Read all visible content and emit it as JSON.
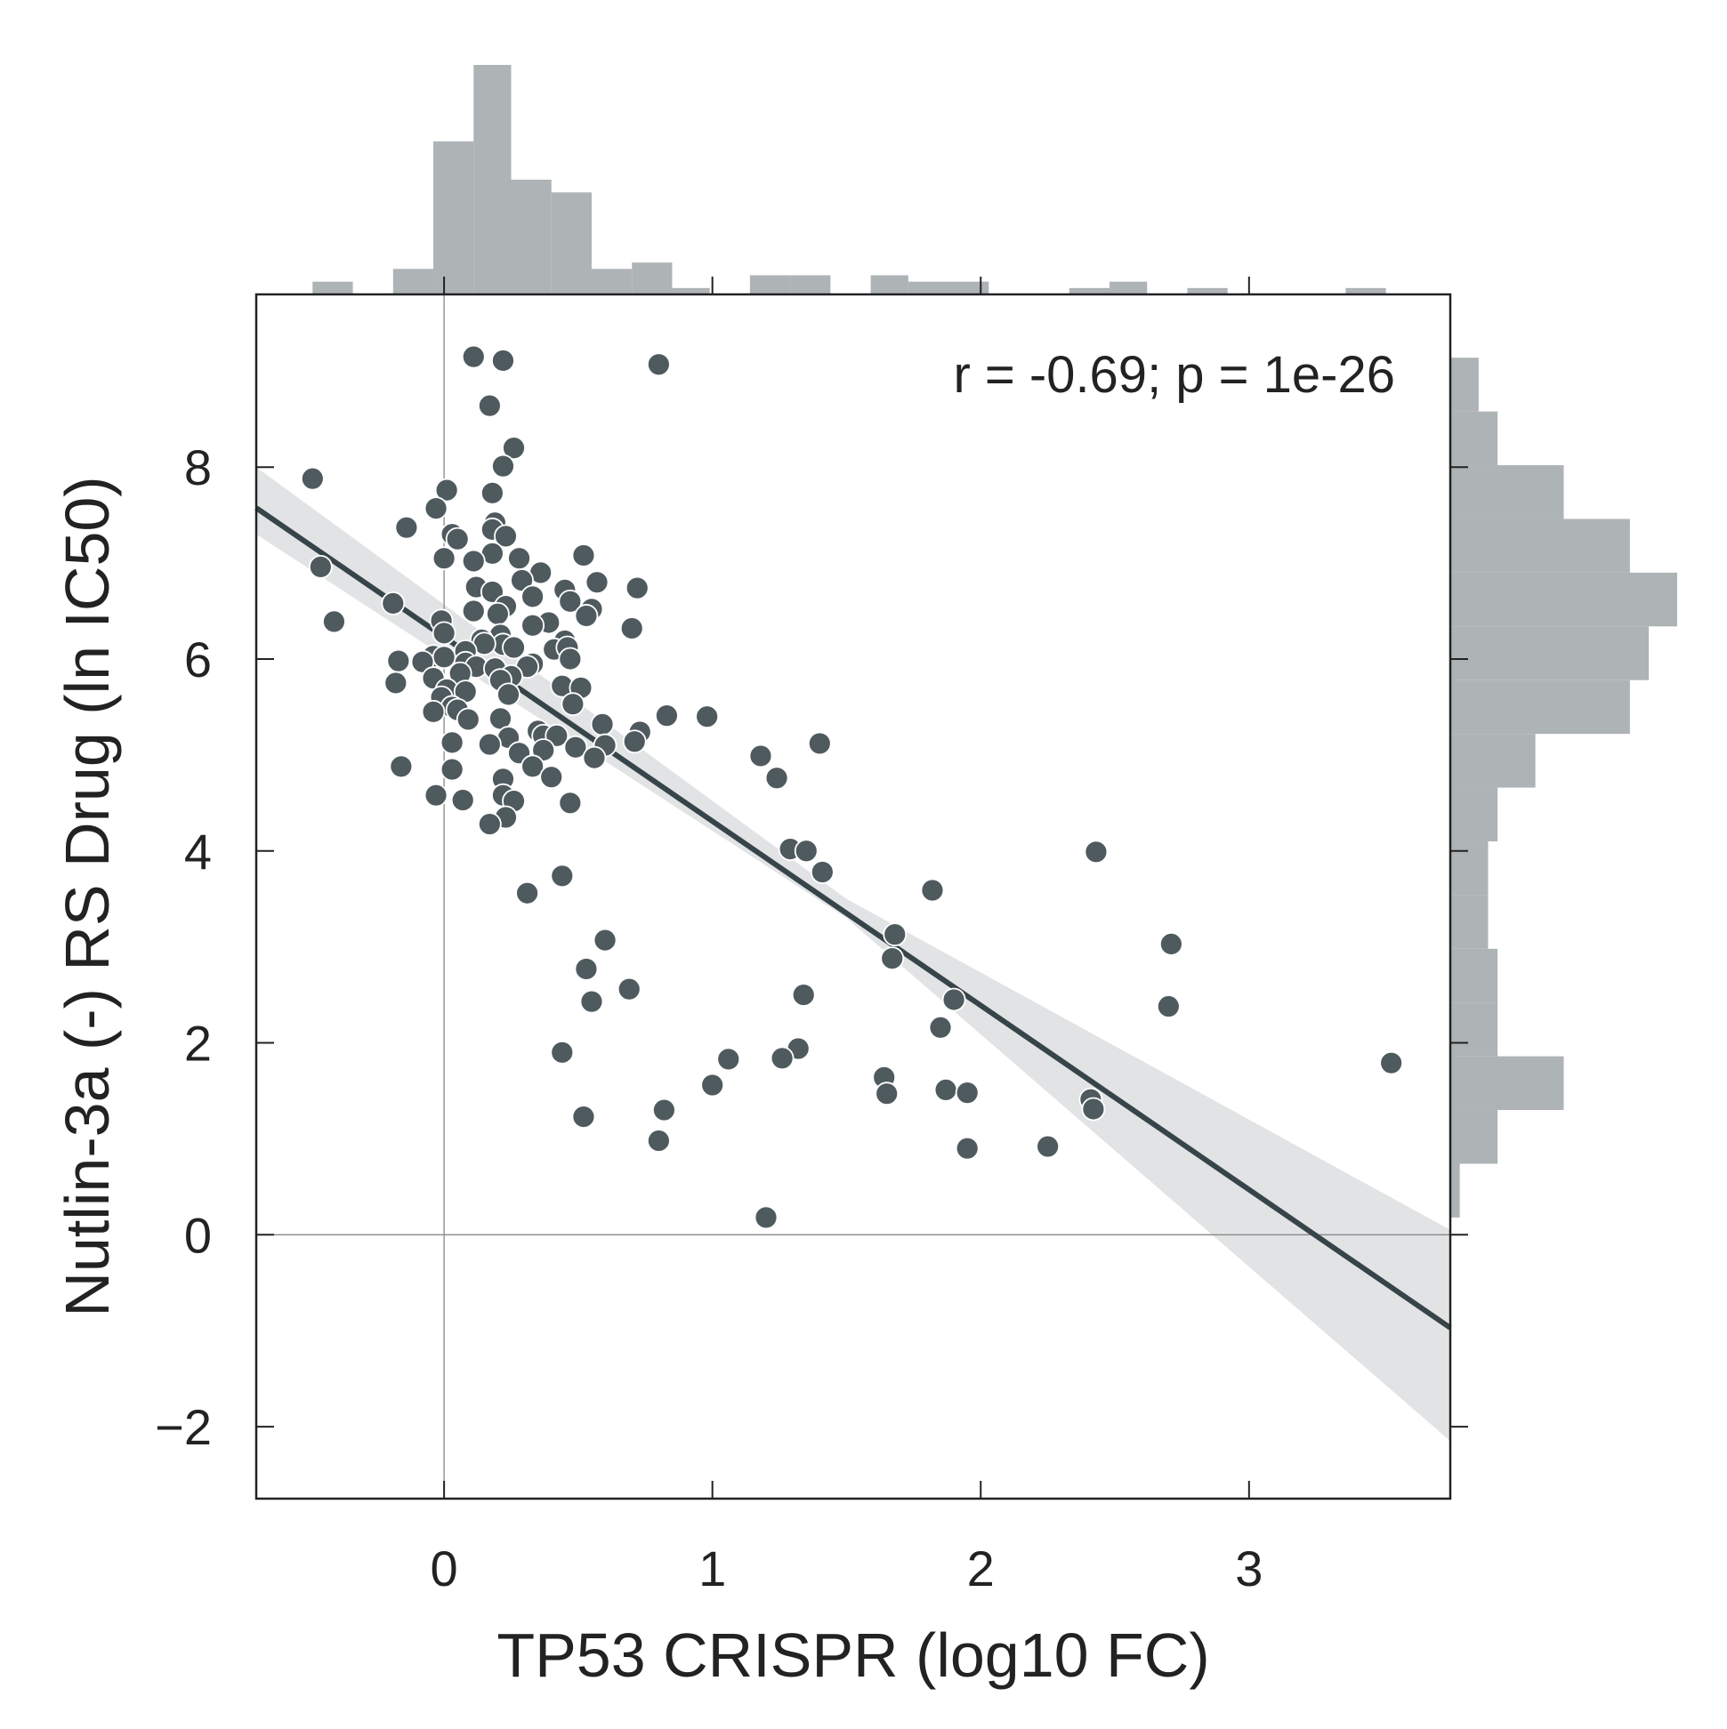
{
  "chart_data": {
    "type": "scatter",
    "title": "",
    "xlabel": "TP53 CRISPR (log10 FC)",
    "ylabel": "Nutlin-3a (-) RS Drug (ln IC50)",
    "xlim": [
      -0.7,
      3.75
    ],
    "ylim": [
      -2.75,
      9.8
    ],
    "xticks": [
      0,
      1,
      2,
      3
    ],
    "yticks": [
      -2,
      0,
      2,
      4,
      6,
      8
    ],
    "xtick_labels": [
      "0",
      "1",
      "2",
      "3"
    ],
    "ytick_labels": [
      "−2",
      "0",
      "2",
      "4",
      "6",
      "8"
    ],
    "annotation": "r = -0.69; p = 1e-26",
    "grid": false,
    "reference_lines": {
      "x": 0,
      "y": 0
    },
    "colors": {
      "points": "#4f5a5f",
      "point_edge": "#ffffff",
      "regression_line": "#37444a",
      "confidence_band": "#e1e3e4",
      "histogram": "#aeb3b5",
      "axes": "#222222",
      "reference_line": "#888888"
    },
    "regression": {
      "x_range": [
        -0.7,
        3.75
      ],
      "slope": -1.92,
      "intercept": 6.23,
      "ci_lower": [
        [
          -0.7,
          7.3
        ],
        [
          1.5,
          3.3
        ],
        [
          3.75,
          -2.15
        ]
      ],
      "ci_upper": [
        [
          -0.7,
          8.0
        ],
        [
          1.5,
          3.5
        ],
        [
          3.75,
          0.05
        ]
      ]
    },
    "x_histogram": {
      "bin_edges": [
        -0.49,
        -0.34,
        -0.19,
        -0.04,
        0.11,
        0.25,
        0.4,
        0.55,
        0.7,
        0.85,
        0.99,
        1.14,
        1.29,
        1.44,
        1.59,
        1.73,
        1.88,
        2.03,
        2.18,
        2.33,
        2.48,
        2.62,
        2.77,
        2.92,
        3.07,
        3.22,
        3.36,
        3.51
      ],
      "counts": [
        2,
        0,
        4,
        24,
        36,
        18,
        16,
        4,
        5,
        1,
        0,
        3,
        3,
        0,
        3,
        2,
        2,
        0,
        0,
        1,
        2,
        0,
        1,
        0,
        0,
        0,
        1
      ]
    },
    "y_histogram": {
      "bin_edges": [
        0.18,
        0.74,
        1.3,
        1.86,
        2.42,
        2.98,
        3.54,
        4.1,
        4.66,
        5.22,
        5.78,
        6.34,
        6.9,
        7.46,
        8.02,
        8.58,
        9.14
      ],
      "counts": [
        1,
        5,
        12,
        5,
        5,
        4,
        4,
        5,
        9,
        19,
        21,
        24,
        19,
        12,
        5,
        3,
        4
      ]
    },
    "points": [
      {
        "x": 0.11,
        "y": 9.15
      },
      {
        "x": 0.22,
        "y": 9.11
      },
      {
        "x": 0.8,
        "y": 9.07
      },
      {
        "x": 0.17,
        "y": 8.64
      },
      {
        "x": 0.26,
        "y": 8.2
      },
      {
        "x": -0.49,
        "y": 7.88
      },
      {
        "x": 0.22,
        "y": 8.01
      },
      {
        "x": 0.01,
        "y": 7.76
      },
      {
        "x": 0.18,
        "y": 7.73
      },
      {
        "x": -0.03,
        "y": 7.57
      },
      {
        "x": -0.14,
        "y": 7.37
      },
      {
        "x": 0.19,
        "y": 7.42
      },
      {
        "x": 0.18,
        "y": 7.35
      },
      {
        "x": 0.03,
        "y": 7.3
      },
      {
        "x": 0.05,
        "y": 7.25
      },
      {
        "x": 0.23,
        "y": 7.28
      },
      {
        "x": 0.18,
        "y": 7.1
      },
      {
        "x": 0.28,
        "y": 7.05
      },
      {
        "x": 0.52,
        "y": 7.08
      },
      {
        "x": 0.0,
        "y": 7.05
      },
      {
        "x": 0.11,
        "y": 7.02
      },
      {
        "x": -0.46,
        "y": 6.96
      },
      {
        "x": 0.36,
        "y": 6.9
      },
      {
        "x": 0.29,
        "y": 6.82
      },
      {
        "x": 0.12,
        "y": 6.75
      },
      {
        "x": 0.57,
        "y": 6.8
      },
      {
        "x": 0.72,
        "y": 6.74
      },
      {
        "x": 0.45,
        "y": 6.72
      },
      {
        "x": 0.18,
        "y": 6.7
      },
      {
        "x": 0.33,
        "y": 6.65
      },
      {
        "x": -0.19,
        "y": 6.58
      },
      {
        "x": 0.47,
        "y": 6.6
      },
      {
        "x": 0.23,
        "y": 6.55
      },
      {
        "x": 0.11,
        "y": 6.5
      },
      {
        "x": 0.55,
        "y": 6.52
      },
      {
        "x": 0.2,
        "y": 6.47
      },
      {
        "x": 0.53,
        "y": 6.45
      },
      {
        "x": -0.41,
        "y": 6.39
      },
      {
        "x": -0.01,
        "y": 6.4
      },
      {
        "x": 0.39,
        "y": 6.38
      },
      {
        "x": 0.33,
        "y": 6.35
      },
      {
        "x": 0.7,
        "y": 6.32
      },
      {
        "x": 0.0,
        "y": 6.27
      },
      {
        "x": 0.21,
        "y": 6.25
      },
      {
        "x": 0.14,
        "y": 6.2
      },
      {
        "x": 0.45,
        "y": 6.19
      },
      {
        "x": 0.22,
        "y": 6.15
      },
      {
        "x": 0.15,
        "y": 6.16
      },
      {
        "x": 0.26,
        "y": 6.12
      },
      {
        "x": 0.41,
        "y": 6.1
      },
      {
        "x": 0.46,
        "y": 6.12
      },
      {
        "x": 0.08,
        "y": 6.08
      },
      {
        "x": -0.04,
        "y": 6.03
      },
      {
        "x": 0.0,
        "y": 6.02
      },
      {
        "x": 0.47,
        "y": 6.0
      },
      {
        "x": -0.17,
        "y": 5.98
      },
      {
        "x": -0.08,
        "y": 5.97
      },
      {
        "x": 0.08,
        "y": 5.96
      },
      {
        "x": 0.33,
        "y": 5.95
      },
      {
        "x": 0.12,
        "y": 5.92
      },
      {
        "x": 0.19,
        "y": 5.9
      },
      {
        "x": 0.31,
        "y": 5.92
      },
      {
        "x": 0.06,
        "y": 5.85
      },
      {
        "x": 0.25,
        "y": 5.82
      },
      {
        "x": -0.18,
        "y": 5.75
      },
      {
        "x": -0.04,
        "y": 5.8
      },
      {
        "x": 0.21,
        "y": 5.78
      },
      {
        "x": 0.44,
        "y": 5.72
      },
      {
        "x": 0.51,
        "y": 5.7
      },
      {
        "x": 0.01,
        "y": 5.68
      },
      {
        "x": 0.08,
        "y": 5.66
      },
      {
        "x": 0.24,
        "y": 5.63
      },
      {
        "x": -0.01,
        "y": 5.6
      },
      {
        "x": 0.48,
        "y": 5.53
      },
      {
        "x": 0.03,
        "y": 5.5
      },
      {
        "x": 0.05,
        "y": 5.47
      },
      {
        "x": -0.04,
        "y": 5.45
      },
      {
        "x": 0.83,
        "y": 5.41
      },
      {
        "x": 0.98,
        "y": 5.4
      },
      {
        "x": 0.21,
        "y": 5.38
      },
      {
        "x": 0.09,
        "y": 5.37
      },
      {
        "x": 0.59,
        "y": 5.32
      },
      {
        "x": 0.35,
        "y": 5.25
      },
      {
        "x": 0.73,
        "y": 5.24
      },
      {
        "x": 0.37,
        "y": 5.2
      },
      {
        "x": 0.24,
        "y": 5.18
      },
      {
        "x": 0.42,
        "y": 5.2
      },
      {
        "x": 0.03,
        "y": 5.13
      },
      {
        "x": 1.4,
        "y": 5.12
      },
      {
        "x": 0.17,
        "y": 5.11
      },
      {
        "x": 0.6,
        "y": 5.1
      },
      {
        "x": 0.71,
        "y": 5.14
      },
      {
        "x": 0.49,
        "y": 5.08
      },
      {
        "x": 0.37,
        "y": 5.05
      },
      {
        "x": 0.28,
        "y": 5.02
      },
      {
        "x": 1.18,
        "y": 4.99
      },
      {
        "x": 0.56,
        "y": 4.97
      },
      {
        "x": 0.33,
        "y": 4.88
      },
      {
        "x": -0.16,
        "y": 4.88
      },
      {
        "x": 0.03,
        "y": 4.85
      },
      {
        "x": 1.24,
        "y": 4.76
      },
      {
        "x": 0.4,
        "y": 4.77
      },
      {
        "x": 0.22,
        "y": 4.75
      },
      {
        "x": 0.22,
        "y": 4.58
      },
      {
        "x": -0.03,
        "y": 4.58
      },
      {
        "x": 0.07,
        "y": 4.53
      },
      {
        "x": 0.26,
        "y": 4.52
      },
      {
        "x": 0.47,
        "y": 4.5
      },
      {
        "x": 0.23,
        "y": 4.35
      },
      {
        "x": 0.17,
        "y": 4.28
      },
      {
        "x": 1.29,
        "y": 4.02
      },
      {
        "x": 1.35,
        "y": 4.0
      },
      {
        "x": 2.43,
        "y": 3.99
      },
      {
        "x": 1.41,
        "y": 3.78
      },
      {
        "x": 0.44,
        "y": 3.74
      },
      {
        "x": 1.82,
        "y": 3.59
      },
      {
        "x": 0.31,
        "y": 3.56
      },
      {
        "x": 1.68,
        "y": 3.13
      },
      {
        "x": 0.6,
        "y": 3.07
      },
      {
        "x": 2.71,
        "y": 3.03
      },
      {
        "x": 1.67,
        "y": 2.88
      },
      {
        "x": 0.53,
        "y": 2.77
      },
      {
        "x": 0.69,
        "y": 2.56
      },
      {
        "x": 1.34,
        "y": 2.5
      },
      {
        "x": 1.9,
        "y": 2.45
      },
      {
        "x": 0.55,
        "y": 2.43
      },
      {
        "x": 2.7,
        "y": 2.38
      },
      {
        "x": 1.85,
        "y": 2.16
      },
      {
        "x": 1.32,
        "y": 1.94
      },
      {
        "x": 0.44,
        "y": 1.9
      },
      {
        "x": 1.06,
        "y": 1.83
      },
      {
        "x": 1.26,
        "y": 1.84
      },
      {
        "x": 3.53,
        "y": 1.79
      },
      {
        "x": 1.64,
        "y": 1.64
      },
      {
        "x": 1.0,
        "y": 1.56
      },
      {
        "x": 1.87,
        "y": 1.51
      },
      {
        "x": 1.95,
        "y": 1.48
      },
      {
        "x": 1.65,
        "y": 1.47
      },
      {
        "x": 2.41,
        "y": 1.41
      },
      {
        "x": 0.82,
        "y": 1.3
      },
      {
        "x": 2.42,
        "y": 1.31
      },
      {
        "x": 0.52,
        "y": 1.23
      },
      {
        "x": 0.8,
        "y": 0.98
      },
      {
        "x": 2.25,
        "y": 0.92
      },
      {
        "x": 1.95,
        "y": 0.9
      },
      {
        "x": 1.2,
        "y": 0.18
      }
    ]
  }
}
